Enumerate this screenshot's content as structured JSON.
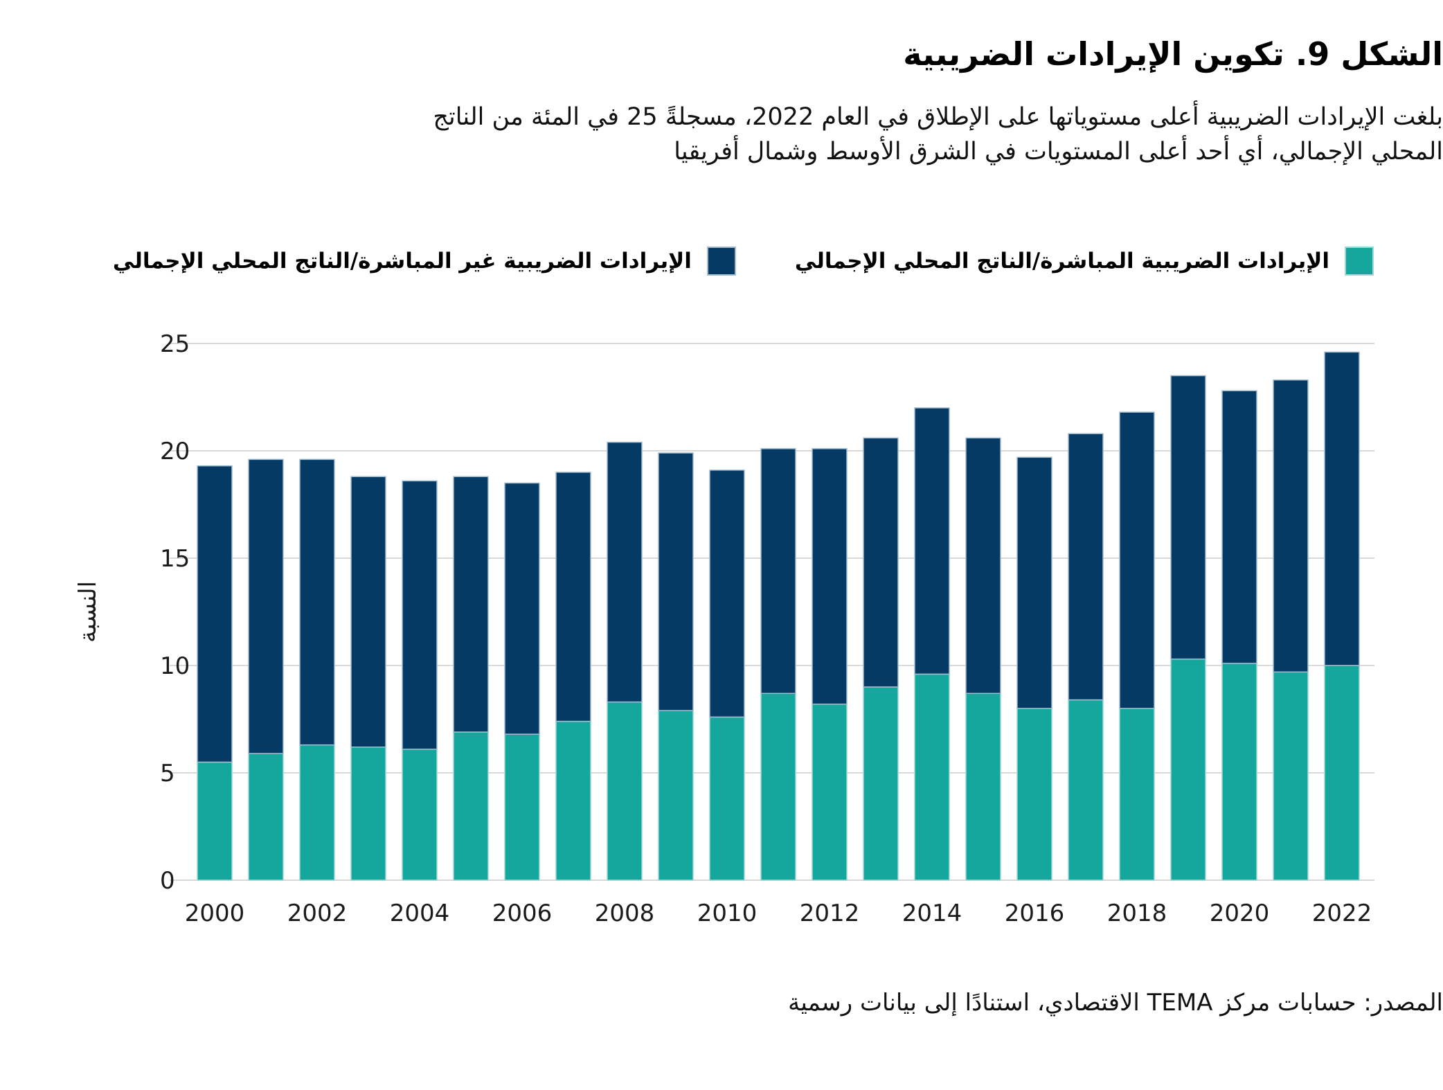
{
  "figure": {
    "title": "الشكل 9. تكوين الإيرادات الضريبية",
    "subtitle_lines": [
      "بلغت الإيرادات الضريبية أعلى مستوياتها على الإطلاق في العام 2022، مسجلةً 25 في المئة من الناتج",
      "المحلي الإجمالي، أي أحد أعلى المستويات في الشرق الأوسط وشمال أفريقيا"
    ],
    "source": "المصدر: حسابات مركز TEMA الاقتصادي، استنادًا إلى بيانات رسمية"
  },
  "legend": [
    {
      "label": "الإيرادات الضريبية المباشرة/الناتج المحلي الإجمالي",
      "color": "#15A79E"
    },
    {
      "label": "الإيرادات الضريبية غير المباشرة/الناتج المحلي الإجمالي",
      "color": "#043A63"
    }
  ],
  "colors": {
    "direct": "#15A79E",
    "direct_edge": "#9ed9d4",
    "indirect": "#043A63",
    "indirect_edge": "#a3bcce",
    "gridline": "#d9d9d9",
    "text": "#1a1a1a"
  },
  "chart_data": {
    "type": "bar",
    "stacked": true,
    "categories": [
      2000,
      2001,
      2002,
      2003,
      2004,
      2005,
      2006,
      2007,
      2008,
      2009,
      2010,
      2011,
      2012,
      2013,
      2014,
      2015,
      2016,
      2017,
      2018,
      2019,
      2020,
      2021,
      2022
    ],
    "series": [
      {
        "name": "الإيرادات الضريبية المباشرة/الناتج المحلي الإجمالي",
        "color": "#15A79E",
        "values": [
          5.5,
          5.9,
          6.3,
          6.2,
          6.1,
          6.9,
          6.8,
          7.4,
          8.3,
          7.9,
          7.6,
          8.7,
          8.2,
          9.0,
          9.6,
          8.7,
          8.0,
          8.4,
          8.0,
          10.3,
          10.1,
          9.7,
          10.0
        ]
      },
      {
        "name": "الإيرادات الضريبية غير المباشرة/الناتج المحلي الإجمالي",
        "color": "#043A63",
        "values": [
          13.8,
          13.7,
          13.3,
          12.6,
          12.5,
          11.9,
          11.7,
          11.6,
          12.1,
          12.0,
          11.5,
          11.4,
          11.9,
          11.6,
          12.4,
          11.9,
          11.7,
          12.4,
          13.8,
          13.2,
          12.7,
          13.6,
          14.6
        ]
      }
    ],
    "totals": [
      19.3,
      19.6,
      19.6,
      18.8,
      18.6,
      18.8,
      18.5,
      19.0,
      20.4,
      19.9,
      19.1,
      20.1,
      20.1,
      20.6,
      22.0,
      20.6,
      19.7,
      20.8,
      21.8,
      23.5,
      22.8,
      23.3,
      24.6
    ],
    "xlabel": "",
    "ylabel": "النسبة",
    "ylim": [
      0,
      25
    ],
    "yticks": [
      0,
      5,
      10,
      15,
      20,
      25
    ],
    "x_tick_every": 2,
    "grid": "horizontal",
    "legend_position": "top"
  }
}
